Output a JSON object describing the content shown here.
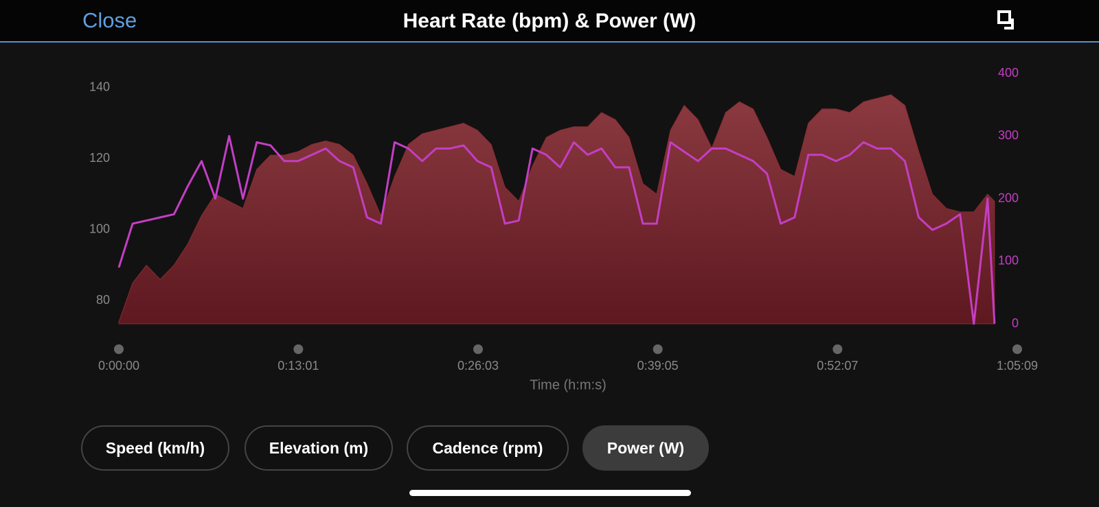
{
  "header": {
    "close": "Close",
    "title": "Heart Rate (bpm) & Power (W)"
  },
  "chart_data": {
    "type": "area-line",
    "x_label": "Time (h:m:s)",
    "x": [
      0,
      60,
      120,
      180,
      240,
      300,
      360,
      420,
      480,
      540,
      600,
      660,
      720,
      780,
      840,
      900,
      960,
      1020,
      1080,
      1140,
      1200,
      1260,
      1320,
      1380,
      1440,
      1500,
      1560,
      1620,
      1680,
      1740,
      1800,
      1860,
      1920,
      1980,
      2040,
      2100,
      2160,
      2220,
      2280,
      2340,
      2400,
      2460,
      2520,
      2580,
      2640,
      2700,
      2760,
      2820,
      2880,
      2940,
      3000,
      3060,
      3120,
      3180,
      3240,
      3300,
      3360,
      3420,
      3480,
      3540,
      3600,
      3660,
      3720,
      3780,
      3810
    ],
    "series": [
      {
        "name": "Heart Rate (bpm)",
        "color": "#8b2a30",
        "axis": "y",
        "values": [
          74,
          85,
          90,
          86,
          90,
          96,
          104,
          110,
          108,
          106,
          117,
          121,
          121,
          122,
          124,
          125,
          124,
          121,
          113,
          104,
          115,
          124,
          127,
          128,
          129,
          130,
          128,
          124,
          112,
          108,
          118,
          126,
          128,
          129,
          129,
          133,
          131,
          126,
          113,
          110,
          128,
          135,
          131,
          123,
          133,
          136,
          134,
          126,
          117,
          115,
          130,
          134,
          134,
          133,
          136,
          137,
          138,
          135,
          122,
          110,
          106,
          105,
          105,
          110,
          108
        ]
      },
      {
        "name": "Power (W)",
        "color": "#c43ec4",
        "axis": "y2",
        "values": [
          90,
          160,
          165,
          170,
          175,
          220,
          260,
          200,
          300,
          200,
          290,
          285,
          260,
          260,
          270,
          280,
          260,
          250,
          170,
          160,
          290,
          280,
          260,
          280,
          280,
          285,
          260,
          250,
          160,
          165,
          280,
          270,
          250,
          290,
          270,
          280,
          250,
          250,
          160,
          160,
          290,
          275,
          260,
          280,
          280,
          270,
          260,
          240,
          160,
          170,
          270,
          270,
          260,
          270,
          290,
          280,
          280,
          260,
          170,
          150,
          160,
          175,
          0,
          200,
          0
        ]
      }
    ],
    "xlim": [
      0,
      3909
    ],
    "xticks": [
      {
        "value": 0,
        "label": "0:00:00"
      },
      {
        "value": 781,
        "label": "0:13:01"
      },
      {
        "value": 1563,
        "label": "0:26:03"
      },
      {
        "value": 2345,
        "label": "0:39:05"
      },
      {
        "value": 3127,
        "label": "0:52:07"
      },
      {
        "value": 3909,
        "label": "1:05:09"
      }
    ],
    "ylim": [
      73.5,
      144
    ],
    "yticks": [
      80,
      100,
      120,
      140
    ],
    "y2lim": [
      0,
      400
    ],
    "y2ticks": [
      0,
      100,
      200,
      300,
      400
    ]
  },
  "buttons": [
    "Speed (km/h)",
    "Elevation (m)",
    "Cadence (rpm)",
    "Power (W)"
  ]
}
